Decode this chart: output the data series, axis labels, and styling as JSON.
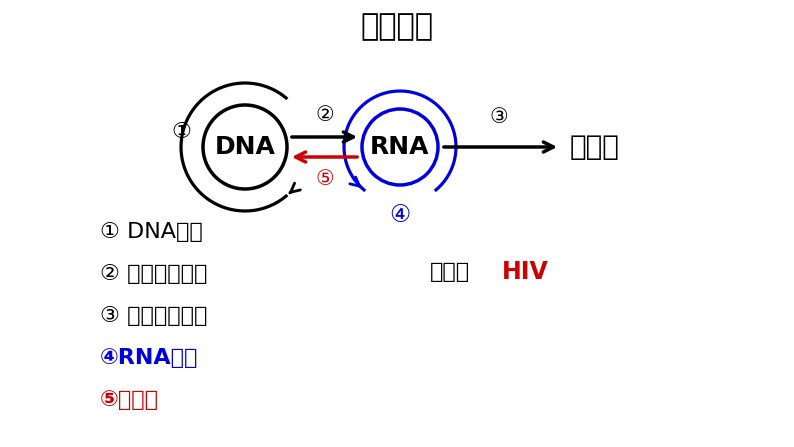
{
  "title": "中心法则",
  "bg_color": "#ffffff",
  "black_color": "#000000",
  "blue_color": "#0000dd",
  "red_color": "#cc0000",
  "dna_label": "DNA",
  "rna_label": "RNA",
  "protein_label": "蛋白质",
  "example_label": "例子：",
  "example_hiv": "HIV",
  "legend_items": [
    {
      "num": "①",
      "text": " DNA复制",
      "color": "#000000",
      "bold": false
    },
    {
      "num": "②",
      "text": " 遗传信息转录",
      "color": "#000000",
      "bold": false
    },
    {
      "num": "③",
      "text": " 遗传信息翻译",
      "color": "#000000",
      "bold": false
    },
    {
      "num": "④",
      "text": "RNA复制",
      "color": "#0000dd",
      "bold": true
    },
    {
      "num": "⑤",
      "text": "逆转录",
      "color": "#cc0000",
      "bold": true
    }
  ]
}
